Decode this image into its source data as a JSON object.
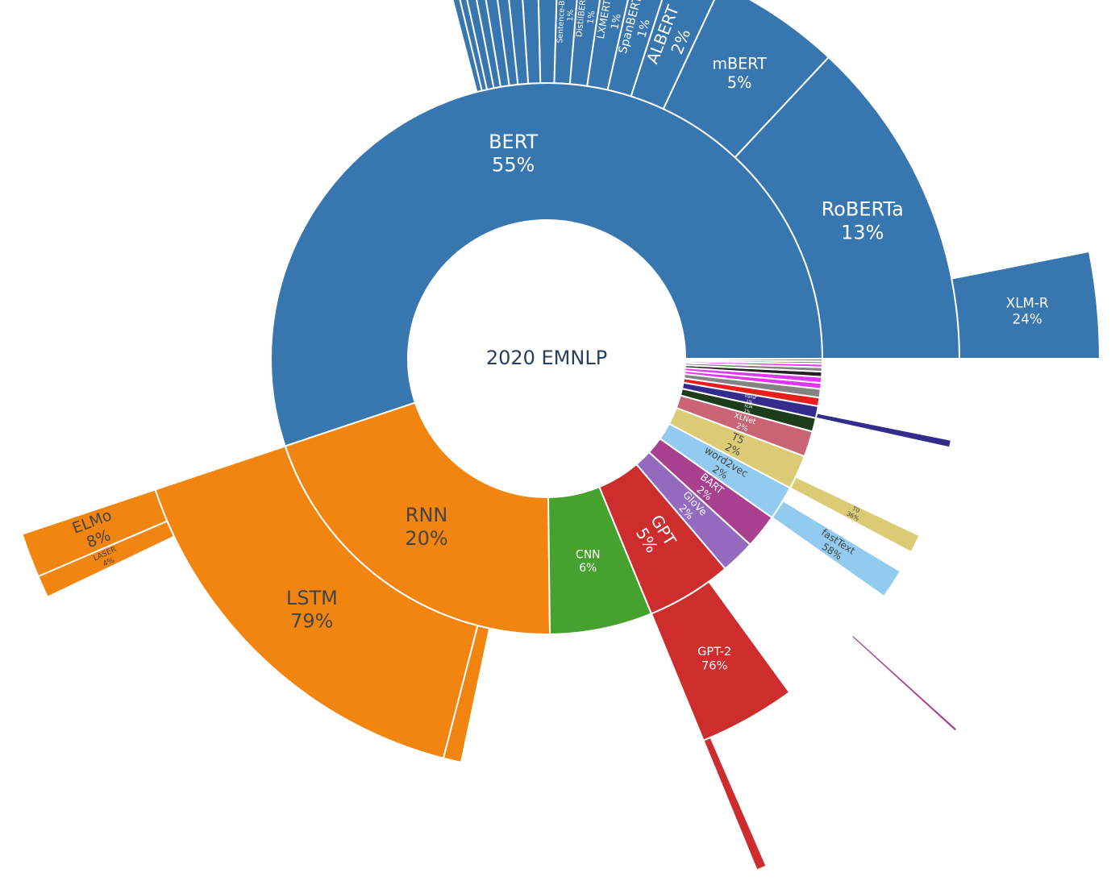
{
  "chart_data": {
    "type": "sunburst",
    "title": "2020 EMNLP",
    "colors": {
      "blue": "#3876b0",
      "orange": "#f28410",
      "green": "#46a12f",
      "red": "#ce2d2e",
      "purple": "#946abf",
      "magenta": "#a8408f",
      "lightblue": "#93cbf0",
      "khaki": "#dccb75",
      "rose": "#c86473",
      "darkgreen": "#1c3c1c",
      "indigo": "#342c8c",
      "brightred": "#ea1d1d",
      "gray": "#838383",
      "violet": "#e136f5",
      "darkslate": "#222222",
      "teal": "#4d8f8a"
    },
    "inner": [
      {
        "name": "BERT",
        "value": 55,
        "label": "BERT\n55%",
        "color": "blue"
      },
      {
        "name": "RNN",
        "value": 20,
        "label": "RNN\n20%",
        "color": "orange"
      },
      {
        "name": "CNN",
        "value": 6,
        "label": "CNN\n6%",
        "color": "green"
      },
      {
        "name": "GPT",
        "value": 5,
        "label": "GPT\n5%",
        "color": "red"
      },
      {
        "name": "GloVe",
        "value": 2,
        "label": "GloVe\n2%",
        "color": "purple"
      },
      {
        "name": "BART",
        "value": 2,
        "label": "BART\n2%",
        "color": "magenta"
      },
      {
        "name": "word2vec",
        "value": 2,
        "label": "word2vec\n2%",
        "color": "lightblue"
      },
      {
        "name": "T5",
        "value": 2,
        "label": "T5\n2%",
        "color": "khaki"
      },
      {
        "name": "XLNet",
        "value": 1.5,
        "label": "XLNet\n2%",
        "color": "rose"
      },
      {
        "name": "XLM",
        "value": 0.8,
        "label": "XLM\n1%",
        "color": "darkgreen"
      },
      {
        "name": "Transformer",
        "value": 0.7,
        "label": "Transf\n1%",
        "color": "indigo"
      },
      {
        "name": "s1",
        "value": 0.5,
        "label": "",
        "color": "brightred"
      },
      {
        "name": "s2",
        "value": 0.5,
        "label": "",
        "color": "gray"
      },
      {
        "name": "s3",
        "value": 0.35,
        "label": "",
        "color": "violet"
      },
      {
        "name": "s4",
        "value": 0.35,
        "label": "",
        "color": "violet"
      },
      {
        "name": "s5",
        "value": 0.3,
        "label": "",
        "color": "darkslate"
      },
      {
        "name": "s6",
        "value": 0.25,
        "label": "",
        "color": "gray"
      },
      {
        "name": "s7",
        "value": 0.2,
        "label": "",
        "color": "violet"
      },
      {
        "name": "s8",
        "value": 0.15,
        "label": "",
        "color": "teal"
      },
      {
        "name": "s9",
        "value": 0.15,
        "label": "",
        "color": "gray"
      }
    ],
    "outer": [
      {
        "parent": "BERT",
        "start": 0,
        "end": 13,
        "ring": "middle",
        "label": "RoBERTa\n13%",
        "color": "blue"
      },
      {
        "parent": "BERT",
        "start": 13,
        "end": 18,
        "ring": "middle",
        "label": "mBERT\n5%",
        "color": "blue"
      },
      {
        "parent": "BERT",
        "start": 18,
        "end": 20,
        "ring": "middle",
        "label": "ALBERT\n2%",
        "color": "blue"
      },
      {
        "parent": "BERT",
        "start": 20,
        "end": 21.4,
        "ring": "middle",
        "label": "SpanBERT\n1%",
        "color": "blue"
      },
      {
        "parent": "BERT",
        "start": 21.4,
        "end": 22.6,
        "ring": "middle",
        "label": "LXMERT\n1%",
        "color": "blue"
      },
      {
        "parent": "BERT",
        "start": 22.6,
        "end": 23.6,
        "ring": "middle",
        "label": "DistilBERT\n1%",
        "color": "blue"
      },
      {
        "parent": "BERT",
        "start": 23.6,
        "end": 24.5,
        "ring": "middle",
        "label": "Sentence-BERT\n1%",
        "color": "blue"
      },
      {
        "parent": "BERT",
        "start": 24.5,
        "end": 25.3,
        "ring": "middle",
        "label": "",
        "color": "blue"
      },
      {
        "parent": "BERT",
        "start": 25.3,
        "end": 26,
        "ring": "middle",
        "label": "",
        "color": "blue"
      },
      {
        "parent": "BERT",
        "start": 26,
        "end": 26.6,
        "ring": "middle",
        "label": "",
        "color": "blue"
      },
      {
        "parent": "BERT",
        "start": 26.6,
        "end": 27.1,
        "ring": "middle",
        "label": "",
        "color": "blue"
      },
      {
        "parent": "BERT",
        "start": 27.1,
        "end": 27.6,
        "ring": "middle",
        "label": "",
        "color": "blue"
      },
      {
        "parent": "BERT",
        "start": 27.6,
        "end": 28,
        "ring": "middle",
        "label": "",
        "color": "blue"
      },
      {
        "parent": "BERT",
        "start": 28,
        "end": 28.4,
        "ring": "middle",
        "label": "",
        "color": "blue"
      },
      {
        "parent": "BERT",
        "start": 28.4,
        "end": 28.7,
        "ring": "middle",
        "label": "",
        "color": "blue"
      },
      {
        "parent": "BERT",
        "start": 28.7,
        "end": 29,
        "ring": "middle",
        "label": "",
        "color": "blue"
      },
      {
        "parent": "BERT",
        "start": 0,
        "end": 3.1,
        "ring": "outer",
        "label": "XLM-R\n24%",
        "color": "blue"
      },
      {
        "parent": "RNN",
        "start": 0,
        "end": 15.8,
        "ring": "middle",
        "label": "LSTM\n79%",
        "color": "orange"
      },
      {
        "parent": "RNN",
        "start": 15.8,
        "end": 16.5,
        "ring": "middle",
        "label": "",
        "color": "orange"
      },
      {
        "parent": "RNN",
        "start": 0,
        "end": 1.3,
        "ring": "outer",
        "label": "ELMo\n8%",
        "color": "orange"
      },
      {
        "parent": "RNN",
        "start": 1.3,
        "end": 1.95,
        "ring": "outer",
        "label": "LASER\n4%",
        "color": "orange"
      },
      {
        "parent": "GPT",
        "start": 0,
        "end": 3.8,
        "ring": "middle",
        "label": "GPT-2\n76%",
        "color": "red"
      },
      {
        "parent": "GPT",
        "start": 0,
        "end": 0.3,
        "ring": "outer",
        "label": "",
        "color": "red"
      },
      {
        "parent": "BART",
        "start": 0,
        "end": 0.1,
        "ring": "outer",
        "label": "",
        "color": "magenta"
      },
      {
        "parent": "word2vec",
        "start": 0,
        "end": 1.16,
        "ring": "middle",
        "label": "fastText\n58%",
        "color": "lightblue"
      },
      {
        "parent": "T5",
        "start": 0,
        "end": 0.72,
        "ring": "middle",
        "label": "T0\n36%",
        "color": "khaki"
      },
      {
        "parent": "Transformer",
        "start": 0,
        "end": 0.3,
        "ring": "middle",
        "label": "",
        "color": "indigo"
      }
    ]
  }
}
